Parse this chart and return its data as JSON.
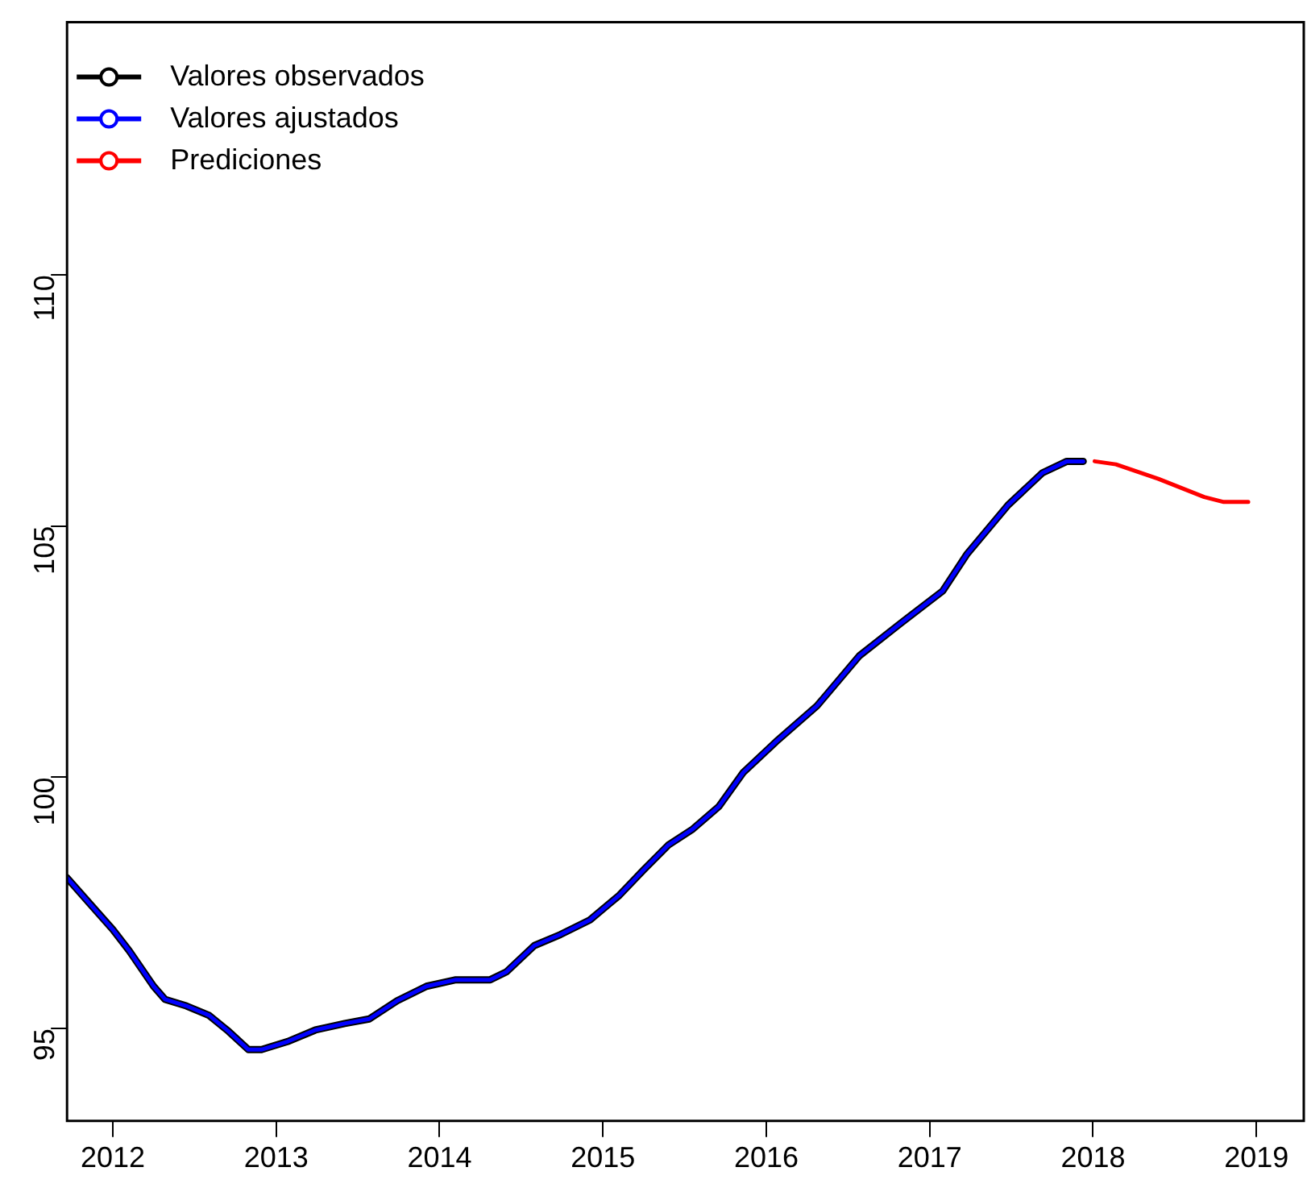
{
  "chart_data": {
    "type": "line",
    "xlim": [
      2011.72,
      2019.29
    ],
    "xticks": [
      2012,
      2013,
      2014,
      2015,
      2016,
      2017,
      2018,
      2019
    ],
    "ylim": [
      93.16,
      115.03
    ],
    "yticks": [
      95,
      100,
      105,
      110
    ],
    "grid": false,
    "legend": "top left",
    "marker": "none",
    "line_style": "solid",
    "series": [
      {
        "name": "Valores observados",
        "color": "#000000",
        "x": [
          2011.72,
          2011.85,
          2012.0,
          2012.1,
          2012.25,
          2012.32,
          2012.45,
          2012.59,
          2012.71,
          2012.83,
          2012.91,
          2013.07,
          2013.24,
          2013.42,
          2013.57,
          2013.74,
          2013.92,
          2014.1,
          2014.31,
          2014.41,
          2014.58,
          2014.74,
          2014.92,
          2015.1,
          2015.25,
          2015.4,
          2015.55,
          2015.71,
          2015.86,
          2016.06,
          2016.31,
          2016.57,
          2016.82,
          2017.08,
          2017.23,
          2017.48,
          2017.69,
          2017.84,
          2017.94
        ],
        "values": [
          98.0,
          97.52,
          96.97,
          96.55,
          95.84,
          95.58,
          95.45,
          95.26,
          94.94,
          94.58,
          94.58,
          94.74,
          94.97,
          95.1,
          95.19,
          95.55,
          95.84,
          95.97,
          95.97,
          96.13,
          96.65,
          96.87,
          97.16,
          97.65,
          98.16,
          98.65,
          98.97,
          99.42,
          100.1,
          100.71,
          101.42,
          102.42,
          103.06,
          103.71,
          104.45,
          105.42,
          106.06,
          106.29,
          106.29
        ]
      },
      {
        "name": "Valores ajustados",
        "color": "#0000ff",
        "x": [
          2011.72,
          2011.85,
          2012.0,
          2012.1,
          2012.25,
          2012.32,
          2012.45,
          2012.59,
          2012.71,
          2012.83,
          2012.91,
          2013.07,
          2013.24,
          2013.42,
          2013.57,
          2013.74,
          2013.92,
          2014.1,
          2014.31,
          2014.41,
          2014.58,
          2014.74,
          2014.92,
          2015.1,
          2015.25,
          2015.4,
          2015.55,
          2015.71,
          2015.86,
          2016.06,
          2016.31,
          2016.57,
          2016.82,
          2017.08,
          2017.23,
          2017.48,
          2017.69,
          2017.84,
          2017.94
        ],
        "values": [
          98.0,
          97.52,
          96.97,
          96.55,
          95.84,
          95.58,
          95.45,
          95.26,
          94.94,
          94.58,
          94.58,
          94.74,
          94.97,
          95.1,
          95.19,
          95.55,
          95.84,
          95.97,
          95.97,
          96.13,
          96.65,
          96.87,
          97.16,
          97.65,
          98.16,
          98.65,
          98.97,
          99.42,
          100.1,
          100.71,
          101.42,
          102.42,
          103.06,
          103.71,
          104.45,
          105.42,
          106.06,
          106.29,
          106.29
        ]
      },
      {
        "name": "Prediciones",
        "color": "#ff0000",
        "x": [
          2018.01,
          2018.14,
          2018.4,
          2018.68,
          2018.8,
          2018.95
        ],
        "values": [
          106.29,
          106.23,
          105.94,
          105.58,
          105.48,
          105.48
        ]
      }
    ]
  }
}
